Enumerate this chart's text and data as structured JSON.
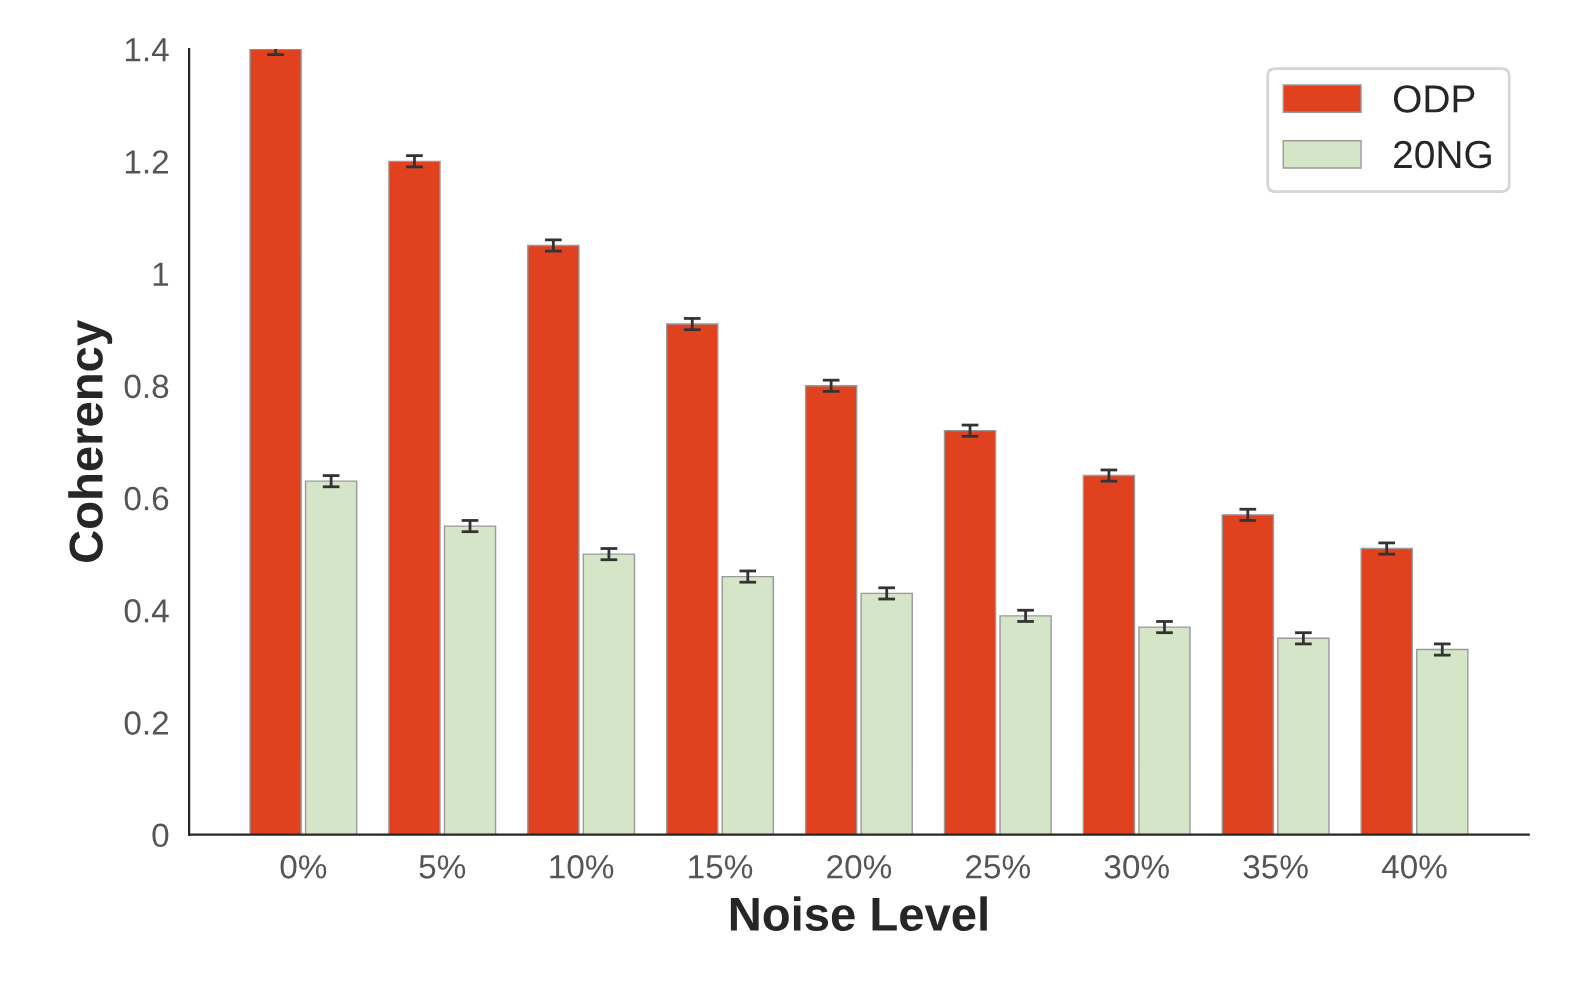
{
  "chart_data": {
    "type": "bar",
    "xlabel": "Noise Level",
    "ylabel": "Coherency",
    "categories": [
      "0%",
      "5%",
      "10%",
      "15%",
      "20%",
      "25%",
      "30%",
      "35%",
      "40%"
    ],
    "series": [
      {
        "name": "ODP",
        "color": "#e0411f",
        "values": [
          1.4,
          1.2,
          1.05,
          0.91,
          0.8,
          0.72,
          0.64,
          0.57,
          0.51
        ],
        "errors": [
          0.01,
          0.01,
          0.01,
          0.01,
          0.01,
          0.01,
          0.01,
          0.01,
          0.01
        ]
      },
      {
        "name": "20NG",
        "color": "#d5e6c8",
        "values": [
          0.63,
          0.55,
          0.5,
          0.46,
          0.43,
          0.39,
          0.37,
          0.35,
          0.33
        ],
        "errors": [
          0.01,
          0.01,
          0.01,
          0.01,
          0.01,
          0.01,
          0.01,
          0.01,
          0.01
        ]
      }
    ],
    "ylim": [
      0,
      1.4
    ],
    "yticks": [
      0,
      0.2,
      0.4,
      0.6,
      0.8,
      1,
      1.2,
      1.4
    ],
    "grid": false,
    "legend": "top right"
  }
}
